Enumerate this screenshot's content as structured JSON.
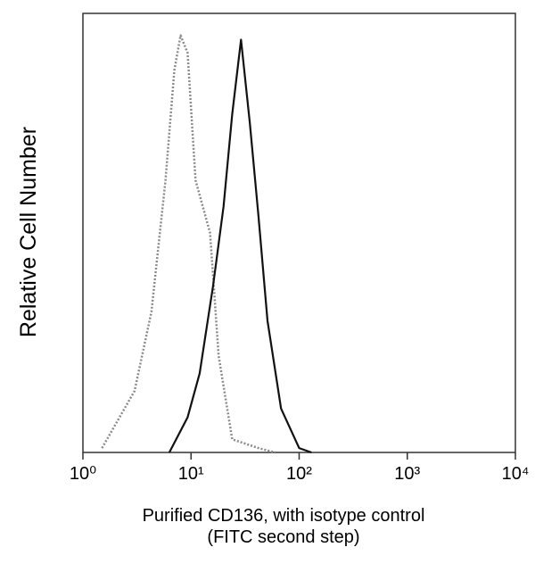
{
  "chart_data": {
    "type": "line",
    "xlabel": [
      "Purified CD136, with isotype control",
      "(FITC second step)"
    ],
    "ylabel": "Relative Cell Number",
    "xscale": "log",
    "xlim": [
      1,
      10000
    ],
    "xticks": [
      {
        "value": 1,
        "label": "10⁰"
      },
      {
        "value": 10,
        "label": "10¹"
      },
      {
        "value": 100,
        "label": "10²"
      },
      {
        "value": 1000,
        "label": "10³"
      },
      {
        "value": 10000,
        "label": "10⁴"
      }
    ],
    "ylim": [
      0,
      100
    ],
    "series": [
      {
        "color": "#8a8a8a",
        "dashed": true,
        "x": [
          1.5,
          3,
          4.3,
          5.8,
          7,
          8,
          9.3,
          11,
          15,
          18,
          24,
          42,
          60
        ],
        "values": [
          1,
          14,
          32,
          62,
          87,
          95,
          91,
          62,
          50,
          22,
          3,
          1,
          0
        ]
      },
      {
        "color": "#111111",
        "dashed": false,
        "x": [
          6.3,
          9.3,
          12,
          16,
          20,
          24,
          29,
          35,
          42,
          51,
          68,
          100,
          130
        ],
        "values": [
          0,
          8,
          18,
          38,
          56,
          77,
          94,
          75,
          54,
          30,
          10,
          1,
          0
        ]
      }
    ]
  }
}
